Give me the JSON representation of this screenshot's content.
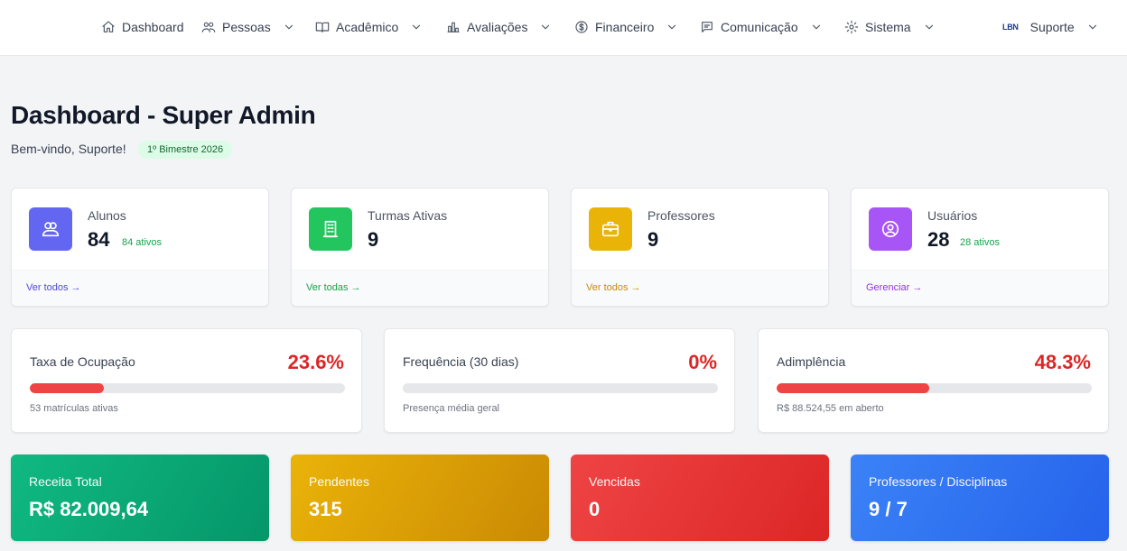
{
  "nav": {
    "dashboard": "Dashboard",
    "pessoas": "Pessoas",
    "academico": "Acadêmico",
    "avaliacoes": "Avaliações",
    "financeiro": "Financeiro",
    "comunicacao": "Comunicação",
    "sistema": "Sistema",
    "user_logo": "LBN",
    "user": "Suporte"
  },
  "header": {
    "title": "Dashboard - Super Admin",
    "welcome": "Bem-vindo, Suporte!",
    "period": "1º Bimestre 2026"
  },
  "stats": [
    {
      "label": "Alunos",
      "value": "84",
      "sub": "84 ativos",
      "link": "Ver todos →",
      "color": "#6366f1",
      "link_color": "#4f46e5",
      "icon": "users-icon"
    },
    {
      "label": "Turmas Ativas",
      "value": "9",
      "sub": "",
      "link": "Ver todas →",
      "color": "#22c55e",
      "link_color": "#16a34a",
      "icon": "building-icon"
    },
    {
      "label": "Professores",
      "value": "9",
      "sub": "",
      "link": "Ver todos →",
      "color": "#eab308",
      "link_color": "#ca8a04",
      "icon": "briefcase-icon"
    },
    {
      "label": "Usuários",
      "value": "28",
      "sub": "28 ativos",
      "link": "Gerenciar →",
      "color": "#a855f7",
      "link_color": "#9333ea",
      "icon": "user-circle-icon"
    }
  ],
  "metrics": [
    {
      "label": "Taxa de Ocupação",
      "value": "23.6%",
      "progress": 0.236,
      "note": "53 matrículas ativas"
    },
    {
      "label": "Frequência (30 dias)",
      "value": "0%",
      "progress": 0,
      "note": "Presença média geral"
    },
    {
      "label": "Adimplência",
      "value": "48.3%",
      "progress": 0.483,
      "note": "R$ 88.524,55 em aberto"
    }
  ],
  "finance": [
    {
      "label": "Receita Total",
      "value": "R$ 82.009,64",
      "color_from": "#10b981",
      "color_to": "#059669"
    },
    {
      "label": "Pendentes",
      "value": "315",
      "color_from": "#eab308",
      "color_to": "#ca8a04"
    },
    {
      "label": "Vencidas",
      "value": "0",
      "color_from": "#ef4444",
      "color_to": "#dc2626"
    },
    {
      "label": "Professores / Disciplinas",
      "value": "9 / 7",
      "color_from": "#3b82f6",
      "color_to": "#2563eb"
    }
  ]
}
